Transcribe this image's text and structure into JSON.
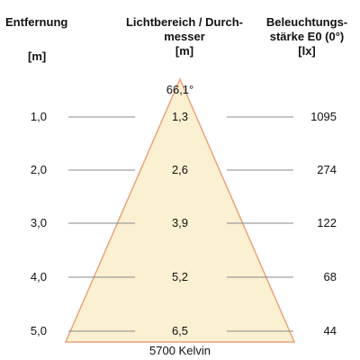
{
  "headers": {
    "distance": "Entfernung",
    "distance_unit": "[m]",
    "diameter_line1": "Lichtbereich / Durch-",
    "diameter_line2": "messer",
    "diameter_unit": "[m]",
    "illum_line1": "Beleuchtungs-",
    "illum_line2": "stärke E0 (0°)",
    "illum_unit": "[lx]"
  },
  "beam_angle": "66,1°",
  "color_temperature": "5700 Kelvin",
  "colors": {
    "cone_fill": "#fbf1d2",
    "cone_edge": "#e9a27a",
    "guide_line": "#888888"
  },
  "rows": [
    {
      "distance": "1,0",
      "diameter": "1,3",
      "illuminance": "1095"
    },
    {
      "distance": "2,0",
      "diameter": "2,6",
      "illuminance": "274"
    },
    {
      "distance": "3,0",
      "diameter": "3,9",
      "illuminance": "122"
    },
    {
      "distance": "4,0",
      "diameter": "5,2",
      "illuminance": "68"
    },
    {
      "distance": "5,0",
      "diameter": "6,5",
      "illuminance": "44"
    }
  ]
}
